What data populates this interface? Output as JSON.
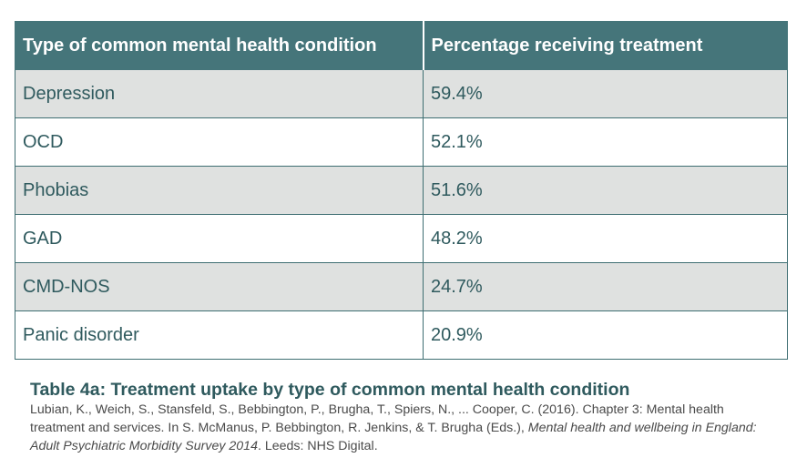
{
  "table": {
    "headers": [
      "Type of common mental health condition",
      "Percentage receiving treatment"
    ],
    "rows": [
      [
        "Depression",
        "59.4%"
      ],
      [
        "OCD",
        "52.1%"
      ],
      [
        "Phobias",
        "51.6%"
      ],
      [
        "GAD",
        "48.2%"
      ],
      [
        "CMD-NOS",
        "24.7%"
      ],
      [
        "Panic disorder",
        "20.9%"
      ]
    ]
  },
  "caption": {
    "title": "Table 4a: Treatment uptake by type of common mental health condition",
    "reference_plain": "Lubian, K., Weich, S., Stansfeld, S., Bebbington, P., Brugha, T., Spiers, N., ...  Cooper, C. (2016). Chapter 3: Mental health treatment and services. In S. McManus, P. Bebbington, R. Jenkins, & T. Brugha (Eds.), ",
    "reference_italic": "Mental health and wellbeing in England: Adult Psychiatric Morbidity Survey 2014",
    "reference_end": ". Leeds: NHS Digital."
  }
}
